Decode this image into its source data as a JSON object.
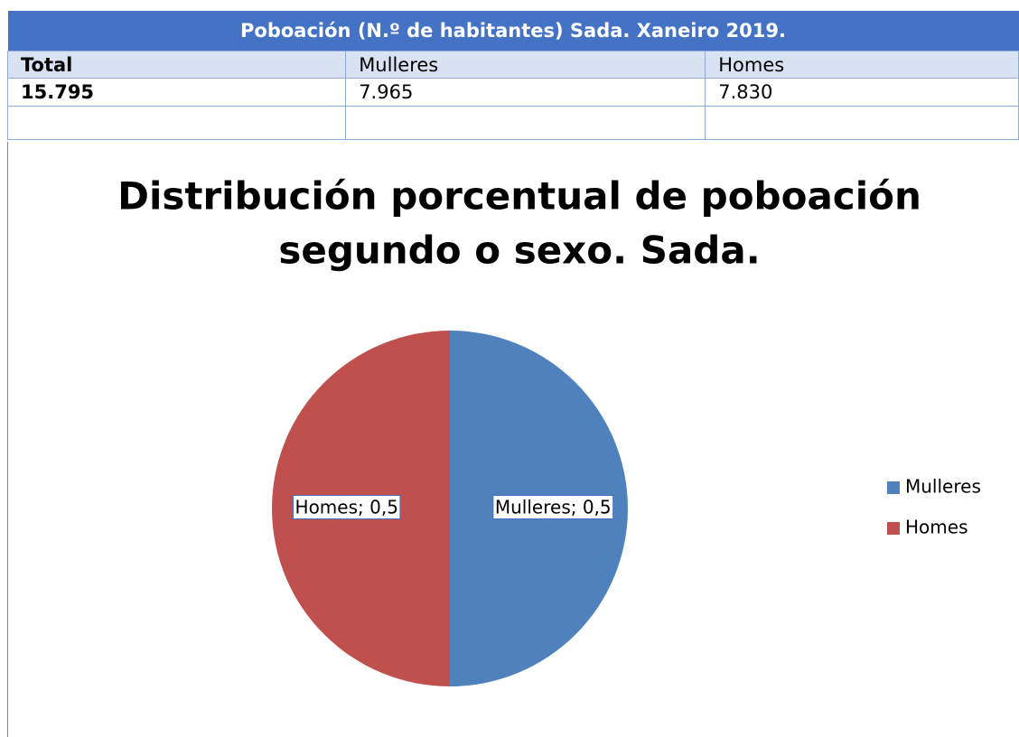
{
  "table": {
    "title": "Poboación (N.º de habitantes) Sada. Xaneiro 2019.",
    "rows": [
      [
        "Total",
        "Mulleres",
        "Homes"
      ],
      [
        "15.795",
        "7.965",
        "7.830"
      ]
    ]
  },
  "chart_data": {
    "type": "pie",
    "title": [
      "Distribución porcentual de poboación",
      "segundo o sexo. Sada."
    ],
    "categories": [
      "Mulleres",
      "Homes"
    ],
    "values": [
      0.5,
      0.5
    ],
    "value_labels": [
      "Mulleres; 0,5",
      "Homes; 0,5"
    ],
    "colors": [
      "#4f81bd",
      "#c0504d"
    ],
    "legend": "right"
  }
}
